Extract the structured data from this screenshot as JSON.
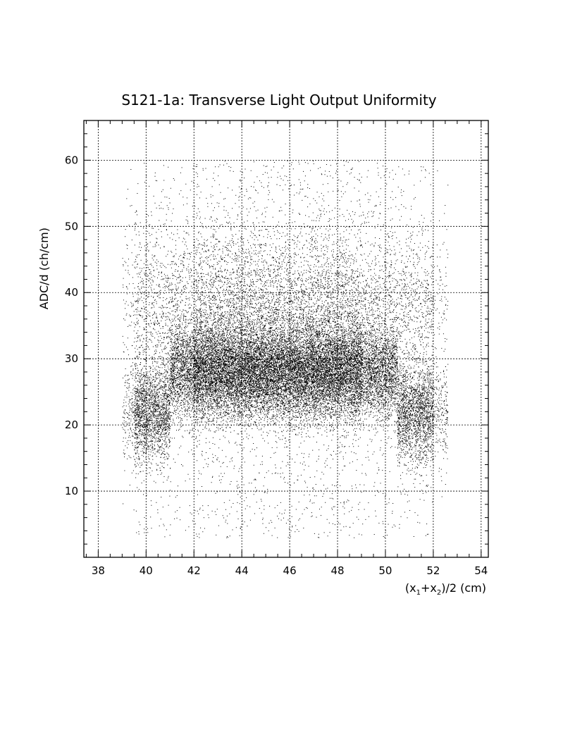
{
  "chart_data": {
    "type": "scatter",
    "title": "S121-1a: Transverse Light Output Uniformity",
    "xlabel": "(x1+x2)/2 (cm)",
    "xlabel_parts": {
      "open": "(x",
      "sub1": "1",
      "plus": "+x",
      "sub2": "2",
      "close": ")/2 (cm)"
    },
    "ylabel": "ADC/d (ch/cm)",
    "xlim": [
      37.4,
      54.3
    ],
    "ylim": [
      0,
      66
    ],
    "xticks": [
      "38",
      "40",
      "42",
      "44",
      "46",
      "48",
      "50",
      "52",
      "54"
    ],
    "yticks": [
      "10",
      "20",
      "30",
      "40",
      "50",
      "60"
    ],
    "grid": true,
    "distribution": {
      "x_range": [
        39.0,
        52.6
      ],
      "y_range": [
        3,
        60
      ],
      "core_y_mean": 28,
      "high_density_x": [
        42,
        49
      ],
      "approx_points": 40000
    }
  }
}
